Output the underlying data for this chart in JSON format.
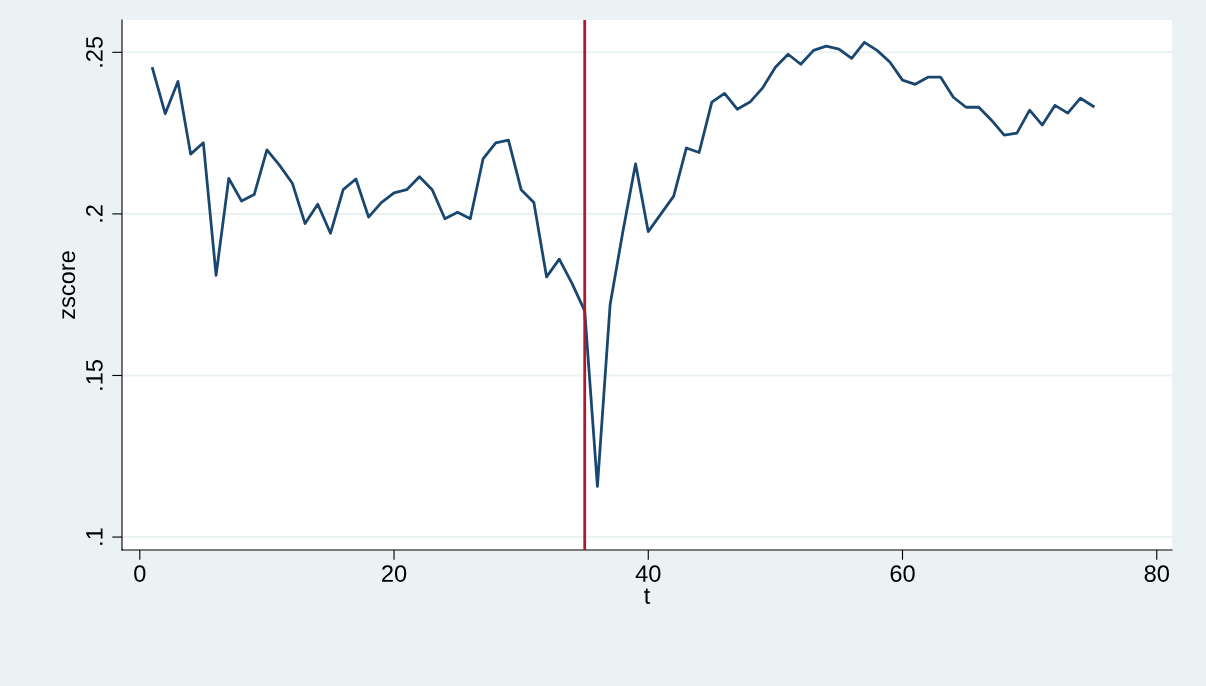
{
  "chart_data": {
    "type": "line",
    "xlabel": "t",
    "ylabel": "zscore",
    "x": [
      1,
      2,
      3,
      4,
      5,
      6,
      7,
      8,
      9,
      10,
      11,
      12,
      13,
      14,
      15,
      16,
      17,
      18,
      19,
      20,
      21,
      22,
      23,
      24,
      25,
      26,
      27,
      28,
      29,
      30,
      31,
      32,
      33,
      34,
      35,
      36,
      37,
      38,
      39,
      40,
      41,
      42,
      43,
      44,
      45,
      46,
      47,
      48,
      49,
      50,
      51,
      52,
      53,
      54,
      55,
      56,
      57,
      58,
      59,
      60,
      61,
      62,
      63,
      64,
      65,
      66,
      67,
      68,
      69,
      70,
      71,
      72,
      73,
      74,
      75
    ],
    "series": [
      {
        "color": "#1a476f",
        "values": [
          0.245,
          0.231,
          0.241,
          0.2185,
          0.222,
          0.181,
          0.211,
          0.204,
          0.206,
          0.2198,
          0.215,
          0.2095,
          0.197,
          0.203,
          0.194,
          0.2075,
          0.2108,
          0.199,
          0.2035,
          0.2065,
          0.2075,
          0.2115,
          0.2075,
          0.1985,
          0.2005,
          0.1985,
          0.217,
          0.222,
          0.2228,
          0.2075,
          0.2035,
          0.1805,
          0.186,
          0.1785,
          0.17,
          0.1157,
          0.172,
          0.1945,
          0.2155,
          0.1945,
          0.2,
          0.2055,
          0.2204,
          0.219,
          0.2346,
          0.2373,
          0.2324,
          0.2346,
          0.239,
          0.2454,
          0.2494,
          0.2463,
          0.2506,
          0.2519,
          0.251,
          0.2481,
          0.2531,
          0.2506,
          0.247,
          0.2414,
          0.2401,
          0.2423,
          0.2423,
          0.2361,
          0.233,
          0.233,
          0.229,
          0.2244,
          0.225,
          0.2321,
          0.2275,
          0.2336,
          0.2312,
          0.2358,
          0.2333
        ]
      }
    ],
    "xlim": [
      -1.4,
      81.2
    ],
    "ylim": [
      0.096,
      0.26
    ],
    "xticks": [
      0,
      20,
      40,
      60,
      80
    ],
    "yticks": [
      {
        "value": 0.1,
        "label": ".1"
      },
      {
        "value": 0.15,
        "label": ".15"
      },
      {
        "value": 0.2,
        "label": ".2"
      },
      {
        "value": 0.25,
        "label": ".25"
      }
    ],
    "grid": "y",
    "ref_lines": [
      {
        "axis": "x",
        "value": 35,
        "color": "#b2182b"
      }
    ]
  }
}
